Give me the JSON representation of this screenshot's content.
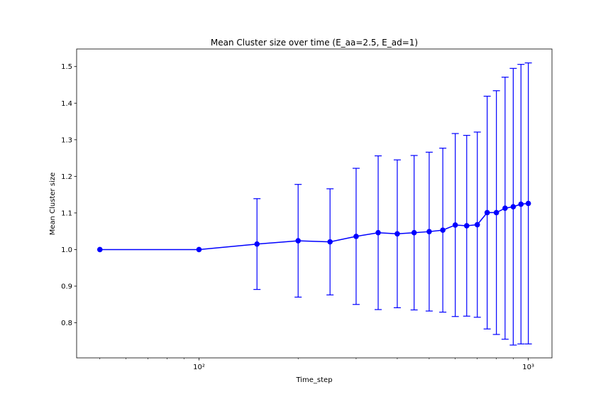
{
  "chart_data": {
    "type": "line",
    "title": "Mean Cluster size over time (E_aa=2.5, E_ad=1)",
    "xlabel": "Time_step",
    "ylabel": "Mean Cluster size",
    "xscale": "log",
    "xlim": [
      42.5,
      1180
    ],
    "ylim": [
      0.704,
      1.548
    ],
    "grid": false,
    "color": "#0000ff",
    "x_tick_values": [
      100,
      1000
    ],
    "x_tick_labels": [
      "10²",
      "10³"
    ],
    "y_tick_values": [
      0.8,
      0.9,
      1.0,
      1.1,
      1.2,
      1.3,
      1.4,
      1.5
    ],
    "y_tick_labels": [
      "0.8",
      "0.9",
      "1.0",
      "1.1",
      "1.2",
      "1.3",
      "1.4",
      "1.5"
    ],
    "series": [
      {
        "x": [
          50,
          100,
          150,
          200,
          250,
          300,
          350,
          400,
          450,
          500,
          550,
          600,
          650,
          700,
          750,
          800,
          850,
          900,
          950,
          1000
        ],
        "y": [
          1.0,
          1.0,
          1.015,
          1.024,
          1.021,
          1.036,
          1.046,
          1.043,
          1.046,
          1.049,
          1.053,
          1.067,
          1.065,
          1.068,
          1.101,
          1.101,
          1.113,
          1.117,
          1.124,
          1.126
        ],
        "yerr": [
          0.0,
          0.0,
          0.124,
          0.154,
          0.145,
          0.186,
          0.21,
          0.202,
          0.211,
          0.217,
          0.224,
          0.25,
          0.247,
          0.253,
          0.318,
          0.333,
          0.358,
          0.378,
          0.382,
          0.384
        ]
      }
    ]
  }
}
